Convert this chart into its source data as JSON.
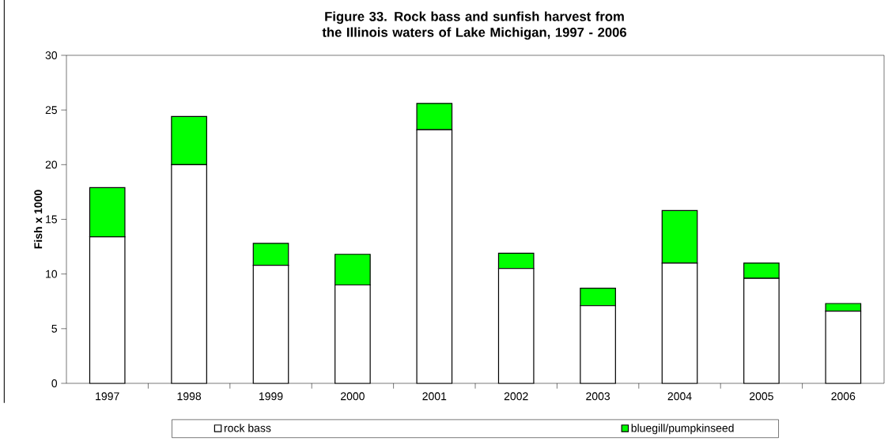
{
  "chart_data": {
    "type": "bar",
    "stacked": true,
    "title": "Figure 33. Rock bass and sunfish harvest from the Illinois waters of Lake Michigan, 1997 - 2006",
    "ylabel": "Fish x 1000",
    "categories": [
      "1997",
      "1998",
      "1999",
      "2000",
      "2001",
      "2002",
      "2003",
      "2004",
      "2005",
      "2006"
    ],
    "series": [
      {
        "name": "rock bass",
        "color": "#ffffff",
        "values": [
          13.4,
          20.0,
          10.8,
          9.0,
          23.2,
          10.5,
          7.1,
          11.0,
          9.6,
          6.6
        ]
      },
      {
        "name": "bluegill/pumpkinseed",
        "color": "#00ff00",
        "values": [
          4.5,
          4.4,
          2.0,
          2.8,
          2.4,
          1.4,
          1.6,
          4.8,
          1.4,
          0.7
        ]
      }
    ],
    "ylim": [
      0,
      30
    ],
    "yticks": [
      0,
      5,
      10,
      15,
      20,
      25,
      30
    ],
    "grid": false,
    "legend": "bottom"
  }
}
